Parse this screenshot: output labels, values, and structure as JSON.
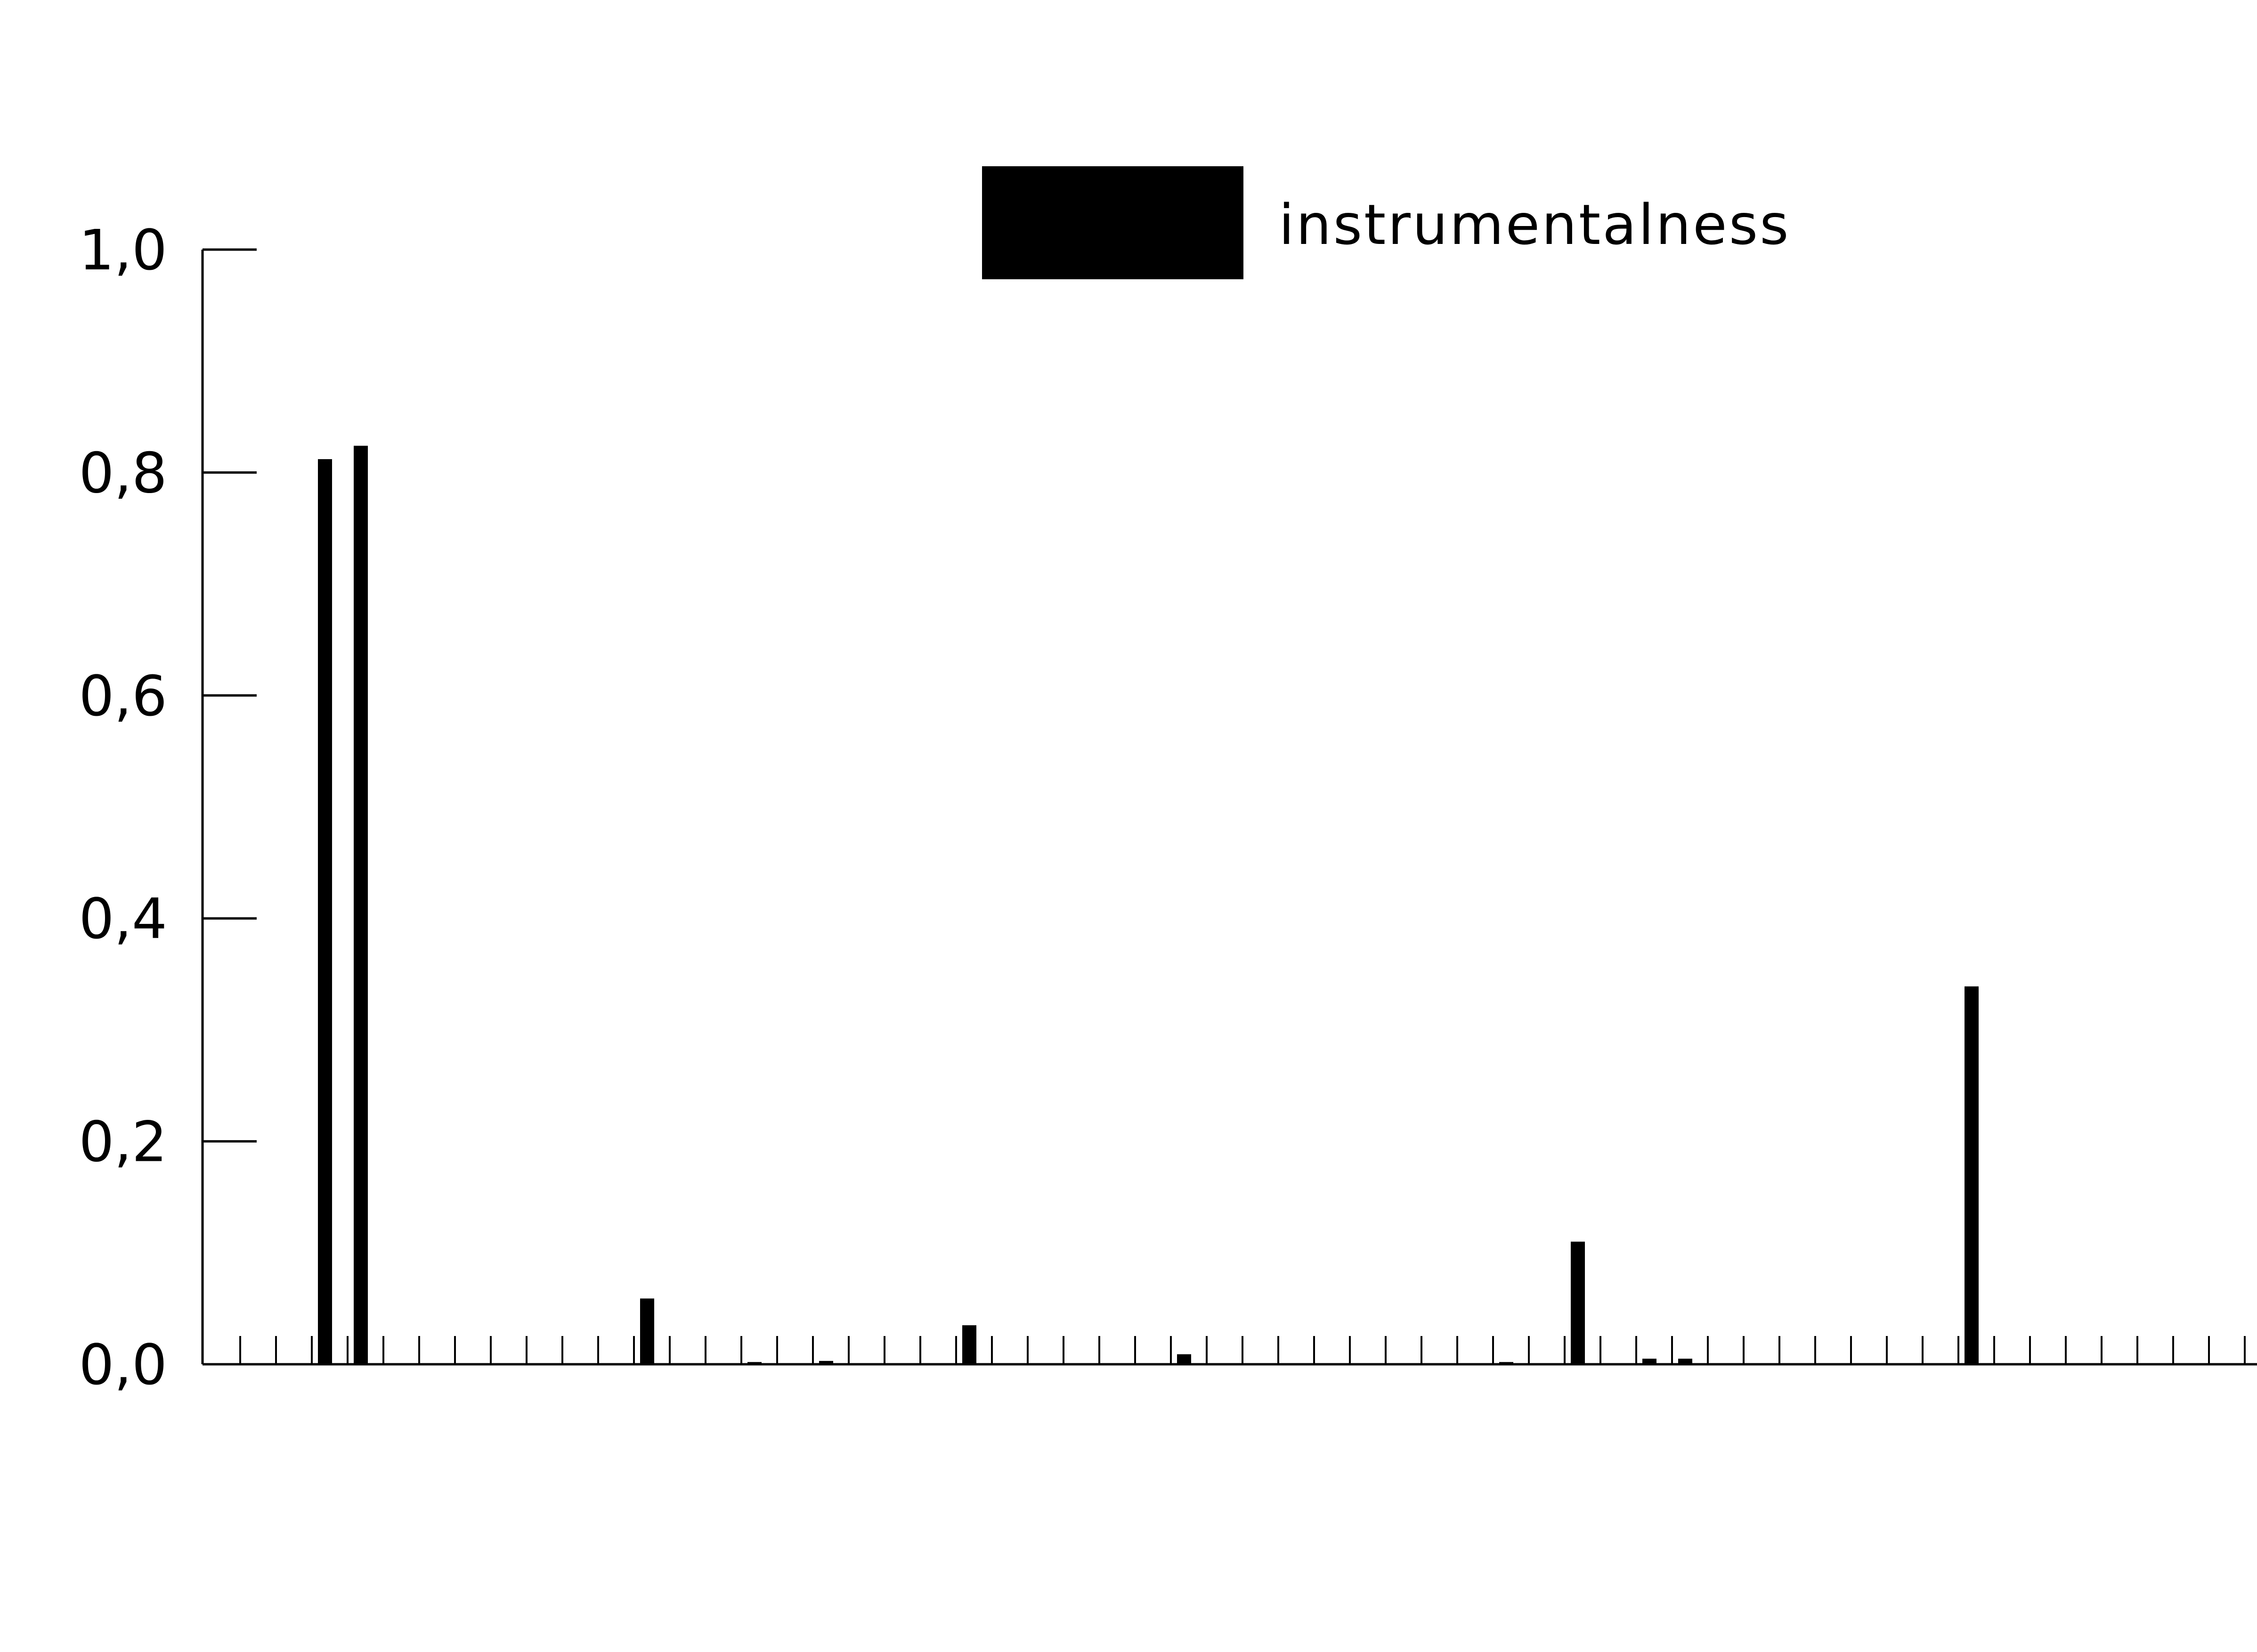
{
  "chart_data": {
    "type": "bar",
    "series": [
      {
        "name": "instrumentalness",
        "values": [
          0,
          0,
          0.812,
          0.824,
          0,
          0,
          0,
          0,
          0,
          0,
          0,
          0.059,
          0.001,
          0,
          0.002,
          0,
          0.003,
          0,
          0,
          0,
          0.035,
          0,
          0,
          0,
          0,
          0.001,
          0.009,
          0,
          0,
          0,
          0,
          0,
          0,
          0,
          0,
          0.002,
          0,
          0.11,
          0,
          0.005,
          0.005,
          0,
          0,
          0.001,
          0.001,
          0,
          0,
          0,
          0.339,
          0,
          0,
          0,
          0,
          0,
          0,
          0,
          0
        ]
      }
    ],
    "ylim": [
      0,
      1
    ],
    "yticks": [
      "0,0",
      "0,2",
      "0,4",
      "0,6",
      "0,8",
      "1,0"
    ],
    "legend_position": "top-center",
    "grid": false,
    "bar_color": "#000000"
  }
}
